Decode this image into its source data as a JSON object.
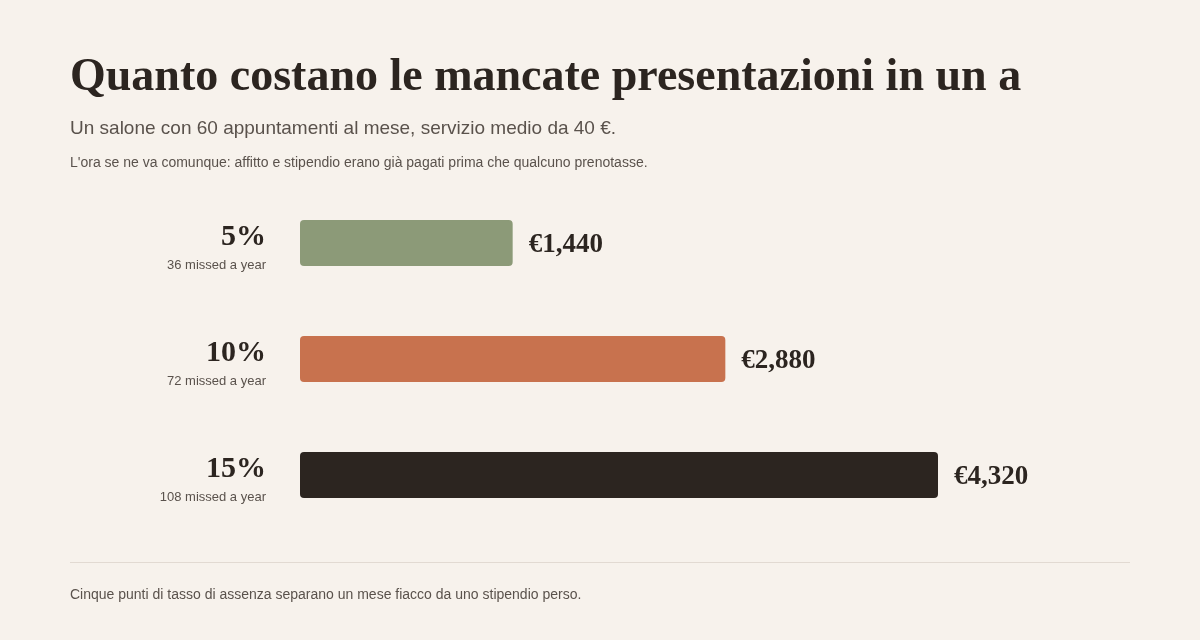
{
  "chart_data": {
    "type": "bar",
    "orientation": "horizontal",
    "title": "Quanto costano le mancate presentazioni in un a",
    "subtitle": "Un salone con 60 appuntamenti al mese, servizio medio da 40 €.",
    "annotations": [
      "L'ora se ne va comunque: affitto e stipendio erano già pagati prima che qualcuno prenotasse.",
      "Cinque punti di tasso di assenza separano un mese fiacco da uno stipendio perso."
    ],
    "categories": [
      "5%\n36 missed a year",
      "10%\n72 missed a year",
      "15%\n108 missed a year"
    ],
    "values": [
      1440,
      2880,
      4320
    ],
    "colors": [
      "#8c9a78",
      "#c8724e",
      "#2c2520"
    ],
    "value_labels": [
      "€1,440",
      "€2,880",
      "€4,320"
    ]
  }
}
